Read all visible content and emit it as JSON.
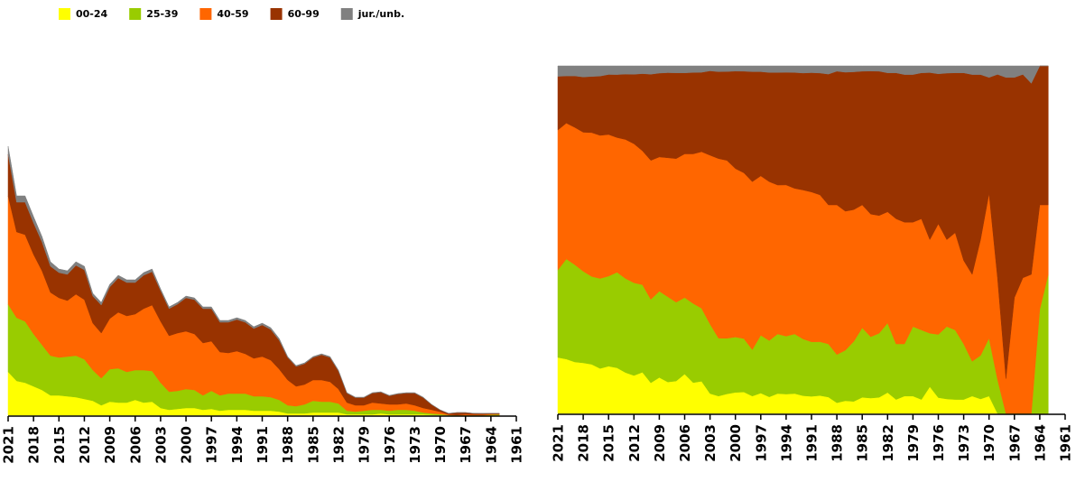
{
  "chart_data": {
    "type": "area",
    "stacked": true,
    "x": [
      2021,
      2020,
      2019,
      2018,
      2017,
      2016,
      2015,
      2014,
      2013,
      2012,
      2011,
      2010,
      2009,
      2008,
      2007,
      2006,
      2005,
      2004,
      2003,
      2002,
      2001,
      2000,
      1999,
      1998,
      1997,
      1996,
      1995,
      1994,
      1993,
      1992,
      1991,
      1990,
      1989,
      1988,
      1987,
      1986,
      1985,
      1984,
      1983,
      1982,
      1981,
      1980,
      1979,
      1978,
      1977,
      1976,
      1975,
      1974,
      1973,
      1972,
      1971,
      1970,
      1969,
      1968,
      1967,
      1966,
      1965,
      1964,
      1963
    ],
    "xlim": [
      2021,
      1961
    ],
    "xticks": [
      2021,
      2018,
      2015,
      2012,
      2009,
      2006,
      2003,
      2000,
      1997,
      1994,
      1991,
      1988,
      1985,
      1982,
      1979,
      1976,
      1973,
      1970,
      1967,
      1964,
      1961
    ],
    "series": [
      {
        "name": "00-24",
        "color": "#ffff00",
        "values": [
          48,
          38,
          36,
          32,
          28,
          22,
          22,
          21,
          20,
          18,
          16,
          11,
          15,
          14,
          14,
          17,
          14,
          15,
          8,
          6,
          7,
          8,
          8,
          6,
          7,
          5,
          6,
          6,
          6,
          5,
          5,
          5,
          4,
          2,
          2,
          2,
          3,
          3,
          3,
          3,
          1,
          1,
          1,
          1,
          2,
          1,
          1,
          1,
          1,
          1,
          0.5,
          0.3,
          0,
          0,
          0,
          0,
          0,
          0,
          0
        ]
      },
      {
        "name": "25-39",
        "color": "#99cc00",
        "values": [
          75,
          70,
          68,
          58,
          50,
          44,
          42,
          44,
          46,
          44,
          34,
          30,
          36,
          38,
          34,
          33,
          36,
          34,
          28,
          20,
          20,
          21,
          20,
          16,
          20,
          17,
          18,
          18,
          18,
          16,
          16,
          15,
          13,
          9,
          8,
          10,
          13,
          12,
          12,
          10,
          4,
          3,
          4,
          5,
          4,
          4,
          5,
          5,
          4,
          2,
          1.5,
          1,
          0.2,
          0,
          0,
          0,
          0,
          0.6,
          0.8
        ]
      },
      {
        "name": "40-59",
        "color": "#ff6600",
        "values": [
          120,
          95,
          96,
          88,
          82,
          70,
          66,
          62,
          68,
          66,
          52,
          50,
          56,
          62,
          62,
          62,
          68,
          73,
          68,
          62,
          64,
          64,
          62,
          58,
          55,
          48,
          45,
          47,
          44,
          42,
          44,
          41,
          34,
          28,
          22,
          22,
          23,
          24,
          22,
          16,
          9,
          7,
          6,
          8,
          7,
          7,
          6,
          7,
          6,
          5,
          4,
          2.5,
          0.6,
          0.3,
          1,
          0.8,
          0.8,
          0.6,
          0.4
        ]
      },
      {
        "name": "60-99",
        "color": "#993300",
        "values": [
          46,
          33,
          36,
          35,
          32,
          29,
          28,
          29,
          32,
          33,
          30,
          31,
          35,
          38,
          37,
          35,
          37,
          37,
          34,
          30,
          32,
          37,
          38,
          38,
          36,
          33,
          34,
          35,
          35,
          33,
          35,
          34,
          32,
          25,
          22,
          23,
          25,
          28,
          27,
          20,
          10.5,
          8.5,
          8.5,
          10.5,
          12.5,
          9.5,
          11.5,
          11.5,
          13.5,
          11.5,
          5.7,
          2,
          1.2,
          2.6,
          1.9,
          1.2,
          1.1,
          0.8,
          0.8
        ]
      },
      {
        "name": "jur./unb.",
        "color": "#808080",
        "values": [
          9,
          7,
          7,
          7,
          6,
          5,
          4,
          4,
          4,
          4,
          3,
          3,
          3,
          3,
          3,
          3,
          3,
          3,
          2,
          2,
          2,
          2,
          2,
          2,
          2,
          2,
          2,
          2,
          2,
          2,
          2,
          2,
          2,
          1,
          1,
          1,
          1,
          1,
          1,
          1,
          0.5,
          0.5,
          0.5,
          0.5,
          0.5,
          0.5,
          0.5,
          0.5,
          0.5,
          0.5,
          0.3,
          0.2,
          0.05,
          0.1,
          0.1,
          0.05,
          0.1,
          0,
          0
        ]
      }
    ]
  }
}
